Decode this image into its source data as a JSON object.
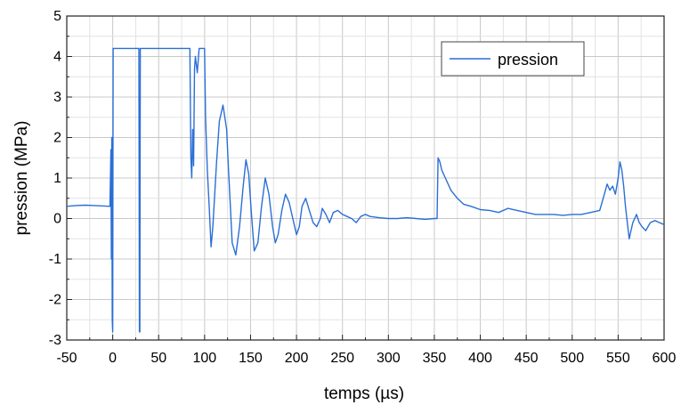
{
  "chart_data": {
    "type": "line",
    "xlabel": "temps (µs)",
    "ylabel": "pression (MPa)",
    "xlim": [
      -50,
      600
    ],
    "ylim": [
      -3,
      5
    ],
    "x_ticks": [
      "-50",
      "0",
      "50",
      "100",
      "150",
      "200",
      "250",
      "300",
      "350",
      "400",
      "450",
      "500",
      "550",
      "600"
    ],
    "y_ticks": [
      "-3",
      "-2",
      "-1",
      "0",
      "1",
      "2",
      "3",
      "4",
      "5"
    ],
    "grid": true,
    "legend_position": "top-right",
    "series": [
      {
        "name": "pression",
        "color": "#2a6fd6",
        "x": [
          -50,
          -40,
          -30,
          -20,
          -10,
          -3,
          -2,
          -1.5,
          -1,
          -0.5,
          0,
          0.5,
          1,
          1.5,
          2,
          2.5,
          3,
          28,
          28.5,
          29,
          29.5,
          30,
          30.5,
          31,
          84,
          85,
          86,
          87,
          88,
          89,
          90,
          92,
          94,
          96,
          100,
          101,
          103,
          105,
          107,
          109,
          111,
          113,
          116,
          120,
          124,
          126,
          128,
          130,
          134,
          138,
          142,
          145,
          148,
          151,
          154,
          158,
          162,
          166,
          170,
          174,
          177,
          180,
          184,
          188,
          192,
          196,
          200,
          203,
          206,
          210,
          214,
          218,
          222,
          226,
          228,
          232,
          236,
          240,
          245,
          250,
          255,
          260,
          265,
          270,
          275,
          280,
          290,
          300,
          310,
          320,
          330,
          340,
          350,
          353,
          354,
          356,
          358,
          362,
          368,
          375,
          382,
          390,
          400,
          410,
          420,
          430,
          440,
          450,
          460,
          470,
          480,
          490,
          500,
          510,
          520,
          530,
          535,
          538,
          541,
          544,
          547,
          550,
          552,
          554,
          556,
          558,
          560,
          562,
          564,
          566,
          568,
          570,
          573,
          576,
          580,
          585,
          590,
          595,
          600
        ],
        "y": [
          0.3,
          0.32,
          0.33,
          0.32,
          0.31,
          0.3,
          1.7,
          -1.0,
          2.0,
          -2.5,
          -2.8,
          4.2,
          4.2,
          4.2,
          4.2,
          4.2,
          4.2,
          4.2,
          4.2,
          -2.8,
          -2.8,
          4.2,
          4.2,
          4.2,
          4.2,
          1.5,
          1.0,
          2.2,
          1.3,
          3.7,
          4.0,
          3.6,
          4.2,
          4.2,
          4.2,
          2.5,
          1.2,
          0.3,
          -0.7,
          -0.2,
          0.6,
          1.4,
          2.4,
          2.8,
          2.2,
          1.2,
          0.3,
          -0.6,
          -0.9,
          -0.2,
          0.8,
          1.45,
          1.1,
          0.1,
          -0.8,
          -0.6,
          0.3,
          1.0,
          0.6,
          -0.2,
          -0.6,
          -0.4,
          0.2,
          0.6,
          0.4,
          0.0,
          -0.4,
          -0.2,
          0.3,
          0.5,
          0.2,
          -0.1,
          -0.2,
          0.0,
          0.25,
          0.1,
          -0.1,
          0.15,
          0.2,
          0.1,
          0.05,
          0.0,
          -0.1,
          0.05,
          0.1,
          0.05,
          0.02,
          0.0,
          0.0,
          0.02,
          0.0,
          -0.02,
          0.0,
          0.0,
          1.5,
          1.4,
          1.2,
          1.0,
          0.7,
          0.5,
          0.35,
          0.3,
          0.22,
          0.2,
          0.15,
          0.25,
          0.2,
          0.15,
          0.1,
          0.1,
          0.1,
          0.08,
          0.1,
          0.1,
          0.15,
          0.2,
          0.6,
          0.85,
          0.7,
          0.8,
          0.6,
          1.0,
          1.4,
          1.2,
          0.8,
          0.3,
          -0.1,
          -0.5,
          -0.3,
          -0.1,
          0.0,
          0.1,
          -0.1,
          -0.2,
          -0.3,
          -0.1,
          -0.05,
          -0.1,
          -0.15
        ]
      }
    ]
  }
}
